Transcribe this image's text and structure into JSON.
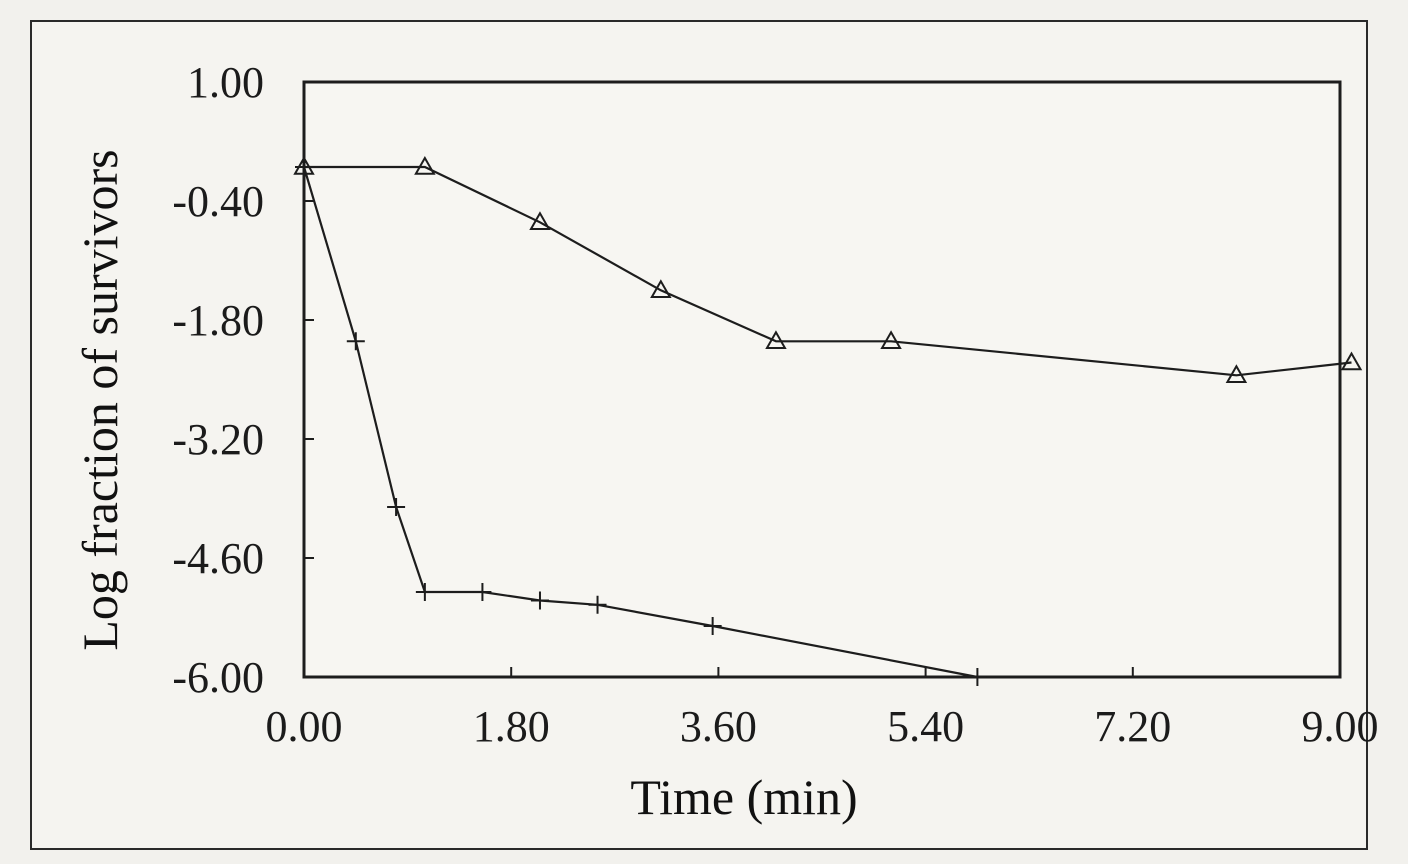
{
  "chart_data": {
    "type": "line",
    "title": "",
    "xlabel": "Time (min)",
    "ylabel": "Log fraction of survivors",
    "xlim": [
      0,
      9.0
    ],
    "ylim": [
      -6.0,
      1.0
    ],
    "x_ticks": [
      "0.00",
      "1.80",
      "3.60",
      "5.40",
      "7.20",
      "9.00"
    ],
    "y_ticks": [
      "1.00",
      "-0.40",
      "-1.80",
      "-3.20",
      "-4.60",
      "-6.00"
    ],
    "grid": false,
    "legend": "none",
    "series": [
      {
        "marker": "triangle",
        "x": [
          0.0,
          1.05,
          2.05,
          3.1,
          4.1,
          5.1,
          8.1,
          9.1
        ],
        "y": [
          0.0,
          0.0,
          -0.65,
          -1.45,
          -2.05,
          -2.05,
          -2.45,
          -2.3
        ]
      },
      {
        "marker": "plus",
        "x": [
          0.0,
          0.45,
          0.8,
          1.05,
          1.55,
          2.05,
          2.55,
          3.55,
          5.85
        ],
        "y": [
          0.0,
          -2.05,
          -4.0,
          -5.0,
          -5.0,
          -5.1,
          -5.15,
          -5.4,
          -6.0
        ]
      }
    ]
  }
}
